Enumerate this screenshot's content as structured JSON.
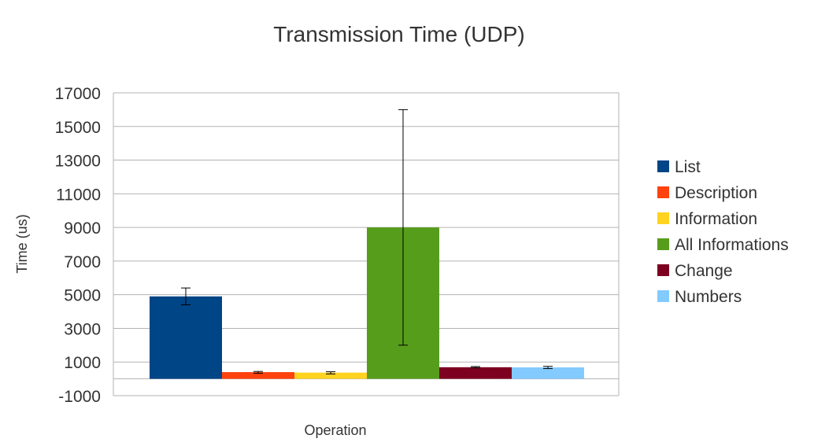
{
  "chart_data": {
    "type": "bar",
    "title": "Transmission Time (UDP)",
    "xlabel": "Operation",
    "ylabel": "Time (us)",
    "ylim": [
      -1000,
      17000
    ],
    "yticks": [
      -1000,
      1000,
      3000,
      5000,
      7000,
      9000,
      11000,
      13000,
      15000,
      17000
    ],
    "grid": true,
    "legend_position": "right",
    "series": [
      {
        "name": "List",
        "value": 4900,
        "err_low": 4400,
        "err_high": 5400,
        "color": "#004586"
      },
      {
        "name": "Description",
        "value": 400,
        "err_low": 330,
        "err_high": 440,
        "color": "#FF420E"
      },
      {
        "name": "Information",
        "value": 370,
        "err_low": 290,
        "err_high": 420,
        "color": "#FFD320"
      },
      {
        "name": "All Informations",
        "value": 9000,
        "err_low": 2000,
        "err_high": 16000,
        "color": "#579D1C"
      },
      {
        "name": "Change",
        "value": 690,
        "err_low": 650,
        "err_high": 730,
        "color": "#7E0021"
      },
      {
        "name": "Numbers",
        "value": 680,
        "err_low": 610,
        "err_high": 740,
        "color": "#83CAFF"
      }
    ]
  }
}
